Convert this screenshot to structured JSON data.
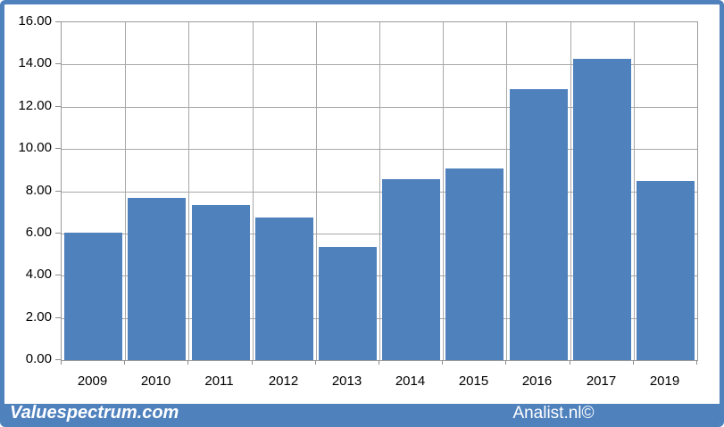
{
  "footer": {
    "brand_left": "Valuespectrum.com",
    "brand_right": "Analist.nl©"
  },
  "colors": {
    "bar_fill": "#4f81bd",
    "frame_border": "#4f81bd",
    "footer_background": "#4f81bd",
    "gridline": "#a8a8a8",
    "plot_border": "#9a9a9a",
    "axis_text": "#000000",
    "footer_text": "#ffffff"
  },
  "chart_data": {
    "type": "bar",
    "title": "",
    "xlabel": "",
    "ylabel": "",
    "categories": [
      "2009",
      "2010",
      "2011",
      "2012",
      "2013",
      "2014",
      "2015",
      "2016",
      "2017",
      "2019"
    ],
    "values": [
      6.05,
      7.67,
      7.35,
      6.74,
      5.38,
      8.55,
      9.06,
      12.85,
      14.27,
      8.5
    ],
    "ylim": [
      0,
      16
    ],
    "ytick_step": 2,
    "ytick_labels": [
      "0.00",
      "2.00",
      "4.00",
      "6.00",
      "8.00",
      "10.00",
      "12.00",
      "14.00",
      "16.00"
    ],
    "grid": true,
    "legend": false,
    "bar_color": "#4f81bd"
  }
}
